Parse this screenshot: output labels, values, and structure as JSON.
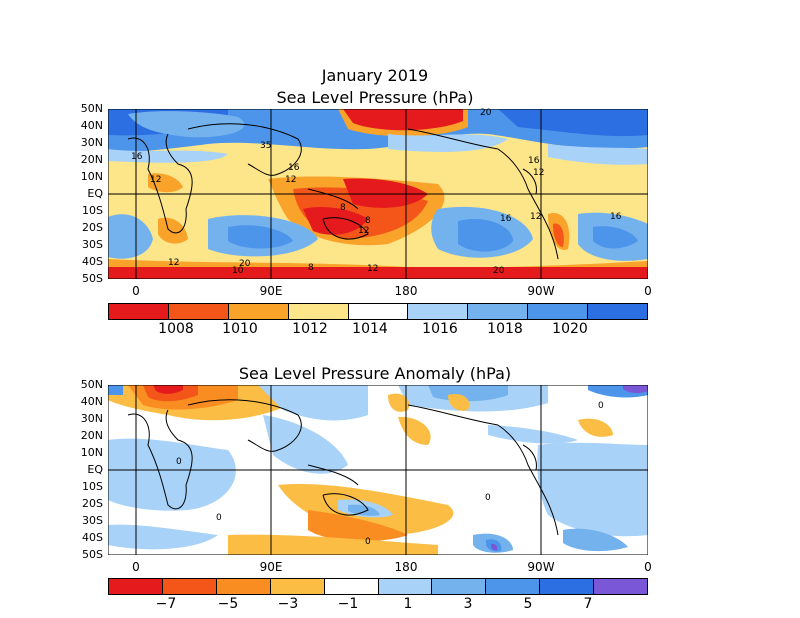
{
  "panel1": {
    "title_line1": "January 2019",
    "title_line2": "Sea Level Pressure (hPa)",
    "lat_labels": [
      "50N",
      "40N",
      "30N",
      "20N",
      "10N",
      "EQ",
      "10S",
      "20S",
      "30S",
      "40S",
      "50S"
    ],
    "lon_labels": [
      "0",
      "90E",
      "180",
      "90W",
      "0"
    ],
    "colorbar": {
      "colors": [
        "#e41a1c",
        "#f4561a",
        "#f9a32b",
        "#fde58a",
        "#ffffff",
        "#a8d2f7",
        "#74b2ee",
        "#4d95ea",
        "#2b6fe2"
      ],
      "labels": [
        "1008",
        "1010",
        "1012",
        "1014",
        "1016",
        "1018",
        "1020"
      ]
    },
    "contour_labels": [
      "16",
      "12",
      "35",
      "16",
      "12",
      "20",
      "8",
      "8",
      "12",
      "16",
      "12",
      "12",
      "16",
      "16",
      "12",
      "10",
      "20",
      "8",
      "12",
      "20"
    ]
  },
  "panel2": {
    "title": "Sea Level Pressure Anomaly (hPa)",
    "lat_labels": [
      "50N",
      "40N",
      "30N",
      "20N",
      "10N",
      "EQ",
      "10S",
      "20S",
      "30S",
      "40S",
      "50S"
    ],
    "lon_labels": [
      "0",
      "90E",
      "180",
      "90W",
      "0"
    ],
    "colorbar": {
      "colors": [
        "#e41a1c",
        "#f4561a",
        "#f98d22",
        "#fbbd44",
        "#ffffff",
        "#a8d2f7",
        "#74b2ee",
        "#4d95ea",
        "#2b6fe2",
        "#7a57d6"
      ],
      "labels": [
        "−7",
        "−5",
        "−3",
        "−1",
        "1",
        "3",
        "5",
        "7"
      ]
    },
    "contour_labels": [
      "0",
      "0",
      "0",
      "0",
      "0"
    ]
  }
}
